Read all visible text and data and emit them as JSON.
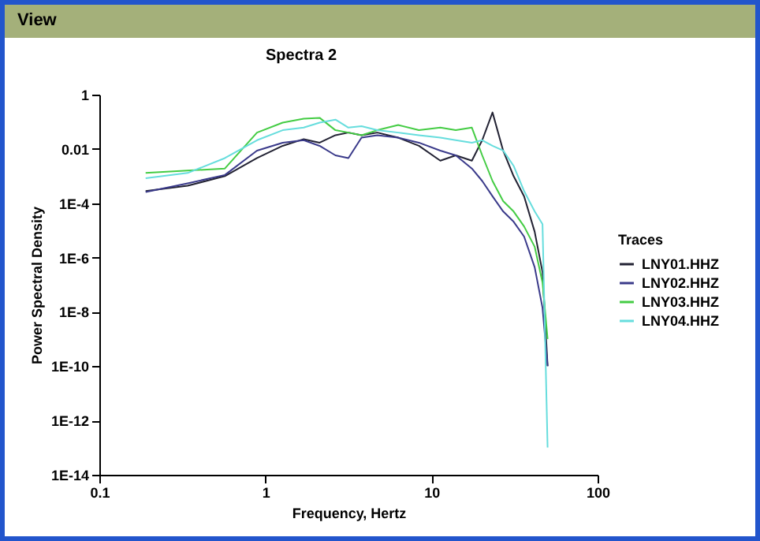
{
  "chart_data": {
    "type": "line",
    "title": "Spectra 2",
    "xlabel": "Frequency, Hertz",
    "ylabel": "Power Spectral Density",
    "legend_title": "Traces",
    "legend": "right",
    "log": "xy",
    "grid": false,
    "marker": "none",
    "line_style": "solid",
    "annotations": [
      "View"
    ],
    "xlim": [
      0.1,
      100
    ],
    "xticks": [
      0.1,
      1,
      10,
      100
    ],
    "ylim": [
      1e-14,
      1
    ],
    "yticks": [
      {
        "value": 1e-14,
        "label": "1E-14"
      },
      {
        "value": 1e-12,
        "label": "1E-12"
      },
      {
        "value": 1e-10,
        "label": "1E-10"
      },
      {
        "value": 1e-08,
        "label": "1E-8"
      },
      {
        "value": 1e-06,
        "label": "1E-6"
      },
      {
        "value": 0.0001,
        "label": "1E-4"
      },
      0.01,
      1
    ],
    "x": [
      0.19,
      0.34,
      0.57,
      0.89,
      1.27,
      1.7,
      2.12,
      2.64,
      3.16,
      3.79,
      4.72,
      6.3,
      8.4,
      11.3,
      14,
      17.5,
      20.2,
      23.3,
      27,
      31.2,
      36.1,
      41.8,
      46.6,
      50
    ],
    "series": [
      {
        "name": "LNY01.HHZ",
        "color": "#222233",
        "values": [
          0.00028,
          0.00044,
          0.001,
          0.0046,
          0.013,
          0.023,
          0.017,
          0.032,
          0.04,
          0.032,
          0.04,
          0.026,
          0.013,
          0.0037,
          0.0058,
          0.0037,
          0.021,
          0.22,
          0.0087,
          0.001,
          0.00018,
          8.9e-06,
          2.9e-07,
          1e-10
        ]
      },
      {
        "name": "LNY02.HHZ",
        "color": "#3a3a8a",
        "values": [
          0.00026,
          0.00054,
          0.0011,
          0.0087,
          0.017,
          0.021,
          0.013,
          0.0058,
          0.0046,
          0.026,
          0.032,
          0.026,
          0.017,
          0.0087,
          0.0058,
          0.0019,
          0.00066,
          0.00018,
          5e-05,
          2.1e-05,
          5.9e-06,
          4.4e-07,
          1.4e-08,
          1e-10
        ]
      },
      {
        "name": "LNY03.HHZ",
        "color": "#44cc44",
        "values": [
          0.0013,
          0.0016,
          0.0019,
          0.04,
          0.093,
          0.13,
          0.14,
          0.049,
          0.04,
          0.032,
          0.049,
          0.076,
          0.049,
          0.061,
          0.049,
          0.061,
          0.0058,
          0.00066,
          0.00012,
          5e-05,
          1.4e-05,
          2.5e-06,
          1.2e-07,
          1e-09
        ]
      },
      {
        "name": "LNY04.HHZ",
        "color": "#66dddd",
        "values": [
          0.00083,
          0.0013,
          0.0046,
          0.021,
          0.049,
          0.061,
          0.093,
          0.12,
          0.061,
          0.069,
          0.049,
          0.04,
          0.032,
          0.026,
          0.021,
          0.017,
          0.021,
          0.013,
          0.0087,
          0.0024,
          0.00028,
          5e-05,
          1.7e-05,
          1e-13
        ]
      }
    ]
  }
}
